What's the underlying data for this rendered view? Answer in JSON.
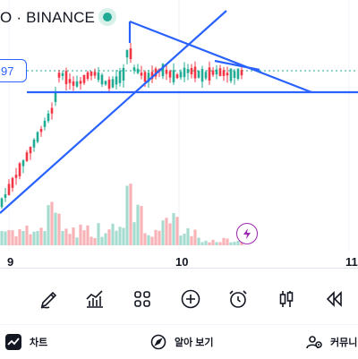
{
  "header": {
    "symbol_text": "O · BINANCE",
    "status_color": "#22ab94"
  },
  "price_scale": {
    "current_price_fragment": "97"
  },
  "time_axis": {
    "labels": [
      "9",
      "10",
      "11"
    ]
  },
  "colors": {
    "up": "#22ab94",
    "down": "#f23645",
    "drawing_line": "#2962ff",
    "volume_up": "#a6dbd0",
    "volume_down": "#f7b3b8",
    "event_marker": "#9c27b0"
  },
  "event_marker": {
    "icon": "lightning-bolt-icon"
  },
  "toolbar": {
    "tools": [
      {
        "name": "draw-tool-button",
        "icon": "pencil-icon"
      },
      {
        "name": "indicators-button",
        "icon": "chart-indicator-icon"
      },
      {
        "name": "layouts-button",
        "icon": "grid-icon"
      },
      {
        "name": "add-button",
        "icon": "plus-circle-icon"
      },
      {
        "name": "alert-button",
        "icon": "alarm-clock-icon"
      },
      {
        "name": "chart-type-button",
        "icon": "candlestick-icon"
      },
      {
        "name": "replay-button",
        "icon": "rewind-icon"
      }
    ]
  },
  "bottom_nav": {
    "items": [
      {
        "label": "차트",
        "icon": "chart-icon"
      },
      {
        "label": "알아 보기",
        "icon": "compass-icon"
      },
      {
        "label": "커뮤니",
        "icon": "community-icon"
      }
    ]
  }
}
